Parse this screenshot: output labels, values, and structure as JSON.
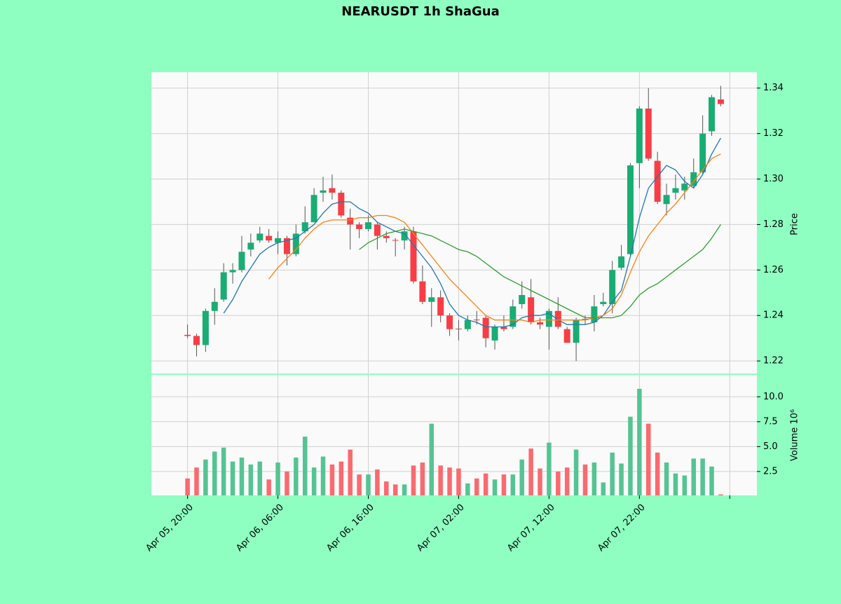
{
  "chart_data": [
    {
      "type": "candlestick",
      "title": "NEARUSDT 1h ShaGua",
      "ylabel": "Price",
      "xlim": [
        -4,
        63
      ],
      "xticks": [
        {
          "value": 0,
          "label": "Apr 05, 20:00"
        },
        {
          "value": 10,
          "label": "Apr 06, 06:00"
        },
        {
          "value": 20,
          "label": "Apr 06, 16:00"
        },
        {
          "value": 30,
          "label": "Apr 07, 02:00"
        },
        {
          "value": 40,
          "label": "Apr 07, 12:00"
        },
        {
          "value": 50,
          "label": "Apr 07, 22:00"
        },
        {
          "value": 60,
          "label": null
        }
      ],
      "ylim": [
        1.2145,
        1.347
      ],
      "yticks": [
        1.22,
        1.24,
        1.26,
        1.28,
        {
          "value": 1.3,
          "label": "1.30"
        },
        1.32,
        1.34
      ],
      "grid": true,
      "up_color": "#1aad73",
      "down_color": "#f83d45",
      "open": [
        1.2315,
        1.231,
        1.227,
        1.242,
        1.247,
        1.259,
        1.26,
        1.269,
        1.273,
        1.275,
        1.272,
        1.274,
        1.267,
        1.277,
        1.281,
        1.294,
        1.296,
        1.294,
        1.283,
        1.28,
        1.278,
        1.28,
        1.275,
        1.2732,
        1.273,
        1.277,
        1.255,
        1.246,
        1.248,
        1.24,
        1.2342,
        1.234,
        1.2382,
        1.239,
        1.229,
        1.235,
        1.235,
        1.245,
        1.248,
        1.237,
        1.235,
        1.242,
        1.234,
        1.228,
        1.2385,
        1.237,
        1.245,
        1.245,
        1.261,
        1.267,
        1.307,
        1.331,
        1.308,
        1.289,
        1.294,
        1.295,
        1.297,
        1.303,
        1.321,
        1.335
      ],
      "high": [
        1.236,
        1.232,
        1.243,
        1.252,
        1.263,
        1.263,
        1.275,
        1.276,
        1.279,
        1.278,
        1.277,
        1.275,
        1.28,
        1.288,
        1.296,
        1.301,
        1.302,
        1.295,
        1.287,
        1.281,
        1.284,
        1.281,
        1.277,
        1.274,
        1.279,
        1.279,
        1.262,
        1.252,
        1.251,
        1.241,
        1.238,
        1.24,
        1.242,
        1.24,
        1.236,
        1.24,
        1.247,
        1.255,
        1.256,
        1.239,
        1.243,
        1.248,
        1.235,
        1.239,
        1.24,
        1.249,
        1.25,
        1.264,
        1.271,
        1.307,
        1.332,
        1.34,
        1.312,
        1.298,
        1.302,
        1.301,
        1.309,
        1.328,
        1.337,
        1.341
      ],
      "low": [
        1.23,
        1.222,
        1.224,
        1.236,
        1.246,
        1.254,
        1.259,
        1.266,
        1.272,
        1.272,
        1.267,
        1.262,
        1.266,
        1.276,
        1.281,
        1.29,
        1.291,
        1.283,
        1.269,
        1.274,
        1.277,
        1.269,
        1.272,
        1.266,
        1.269,
        1.254,
        1.245,
        1.235,
        1.237,
        1.231,
        1.229,
        1.233,
        1.236,
        1.226,
        1.225,
        1.233,
        1.234,
        1.243,
        1.236,
        1.234,
        1.225,
        1.234,
        1.228,
        1.22,
        1.236,
        1.233,
        1.244,
        1.241,
        1.26,
        1.266,
        1.296,
        1.308,
        1.289,
        1.284,
        1.291,
        1.291,
        1.296,
        1.302,
        1.319,
        1.332
      ],
      "close": [
        1.231,
        1.227,
        1.242,
        1.246,
        1.259,
        1.26,
        1.268,
        1.272,
        1.276,
        1.273,
        1.274,
        1.267,
        1.276,
        1.281,
        1.293,
        1.295,
        1.294,
        1.284,
        1.28,
        1.278,
        1.281,
        1.275,
        1.274,
        1.273,
        1.277,
        1.255,
        1.246,
        1.248,
        1.24,
        1.234,
        1.234,
        1.238,
        1.238,
        1.23,
        1.235,
        1.234,
        1.244,
        1.249,
        1.237,
        1.236,
        1.242,
        1.235,
        1.228,
        1.238,
        1.238,
        1.244,
        1.246,
        1.26,
        1.266,
        1.306,
        1.331,
        1.309,
        1.29,
        1.293,
        1.296,
        1.298,
        1.303,
        1.32,
        1.336,
        1.333
      ],
      "series": [
        {
          "color": "#1f77b4",
          "values": [
            null,
            null,
            null,
            null,
            1.241,
            1.247,
            1.255,
            1.261,
            1.267,
            1.27,
            1.272,
            1.273,
            1.274,
            1.277,
            1.28,
            1.285,
            1.289,
            1.29,
            1.29,
            1.287,
            1.285,
            1.281,
            1.279,
            1.277,
            1.276,
            1.271,
            1.266,
            1.261,
            1.254,
            1.245,
            1.24,
            1.238,
            1.237,
            1.235,
            1.235,
            1.235,
            1.236,
            1.239,
            1.24,
            1.24,
            1.241,
            1.238,
            1.236,
            1.236,
            1.236,
            1.237,
            1.24,
            1.246,
            1.251,
            1.266,
            1.283,
            1.296,
            1.301,
            1.306,
            1.304,
            1.299,
            1.296,
            1.302,
            1.311,
            1.318
          ]
        },
        {
          "color": "#ff7f0e",
          "values": [
            null,
            null,
            null,
            null,
            null,
            null,
            null,
            null,
            null,
            1.256,
            1.261,
            1.265,
            1.269,
            1.274,
            1.278,
            1.281,
            1.282,
            1.282,
            1.282,
            1.283,
            1.283,
            1.284,
            1.284,
            1.283,
            1.281,
            1.276,
            1.271,
            1.266,
            1.261,
            1.256,
            1.252,
            1.248,
            1.244,
            1.24,
            1.238,
            1.238,
            1.238,
            1.238,
            1.237,
            1.238,
            1.238,
            1.238,
            1.238,
            1.238,
            1.238,
            1.239,
            1.24,
            1.243,
            1.249,
            1.259,
            1.268,
            1.275,
            1.28,
            1.285,
            1.289,
            1.294,
            1.299,
            1.304,
            1.309,
            1.311
          ]
        },
        {
          "color": "#2ca02c",
          "values": [
            null,
            null,
            null,
            null,
            null,
            null,
            null,
            null,
            null,
            null,
            null,
            null,
            null,
            null,
            null,
            null,
            null,
            null,
            null,
            1.269,
            1.272,
            1.274,
            1.276,
            1.277,
            1.278,
            1.277,
            1.276,
            1.275,
            1.273,
            1.271,
            1.269,
            1.268,
            1.266,
            1.263,
            1.26,
            1.257,
            1.255,
            1.253,
            1.251,
            1.249,
            1.247,
            1.245,
            1.243,
            1.241,
            1.239,
            1.239,
            1.239,
            1.239,
            1.24,
            1.244,
            1.249,
            1.252,
            1.254,
            1.257,
            1.26,
            1.263,
            1.266,
            1.269,
            1.274,
            1.28
          ]
        }
      ]
    },
    {
      "type": "bar",
      "ylabel": "Volume  10⁶",
      "ylim": [
        0.1,
        12.2
      ],
      "yticks": [
        2.5,
        {
          "value": 5,
          "label": "5.0"
        },
        7.5,
        {
          "value": 10,
          "label": "10.0"
        }
      ],
      "up_color": "#54c493",
      "down_color": "#fa6a6e",
      "values": [
        1.8,
        2.9,
        3.7,
        4.5,
        4.9,
        3.5,
        3.9,
        3.2,
        3.5,
        1.7,
        3.4,
        2.5,
        3.9,
        6.0,
        2.9,
        4.0,
        3.2,
        3.5,
        4.7,
        2.2,
        2.2,
        2.7,
        1.5,
        1.2,
        1.2,
        3.1,
        3.4,
        7.3,
        3.1,
        2.9,
        2.8,
        1.3,
        1.8,
        2.3,
        1.7,
        2.2,
        2.2,
        3.7,
        4.8,
        2.8,
        5.4,
        2.5,
        2.9,
        4.7,
        3.2,
        3.4,
        1.4,
        4.4,
        3.3,
        8.0,
        10.8,
        7.3,
        4.4,
        3.4,
        2.3,
        2.1,
        3.8,
        3.8,
        3.0,
        0.2
      ]
    }
  ]
}
